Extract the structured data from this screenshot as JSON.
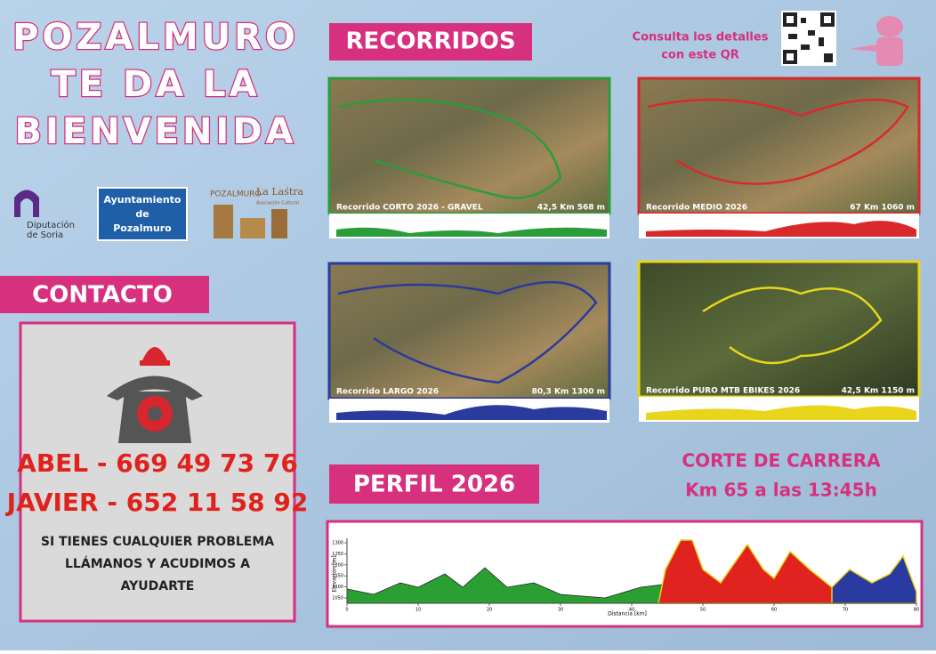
{
  "title_lines": [
    "POZALMURO",
    "TE DA LA",
    "BIENVENIDA"
  ],
  "logos": {
    "diputacion": [
      "Diputación",
      "de Soria"
    ],
    "ayuntamiento": [
      "Ayuntamiento",
      "de",
      "Pozalmuro"
    ],
    "lastra": [
      "POZALMURO",
      "La Laśtra",
      "Asociación Cultural"
    ]
  },
  "contact": {
    "heading": "CONTACTO",
    "phones": [
      "ABEL  -  669 49 73 76",
      "JAVIER  -  652 11 58 92"
    ],
    "note": [
      "SI TIENES CUALQUIER PROBLEMA",
      "LLÁMANOS Y ACUDIMOS A",
      "AYUDARTE"
    ]
  },
  "routes": {
    "heading": "RECORRIDOS",
    "qr_text": [
      "Consulta los detalles",
      "con este QR"
    ],
    "maps": [
      {
        "name": "Recorrido CORTO 2026 - GRAVEL",
        "stats": "42,5 Km 568 m"
      },
      {
        "name": "Recorrido MEDIO 2026",
        "stats": "67 Km 1060 m"
      },
      {
        "name": "Recorrido LARGO 2026",
        "stats": "80,3 Km 1300 m"
      },
      {
        "name": "Recorrido PURO MTB EBIKES 2026",
        "stats": "42,5 Km 1150 m"
      }
    ]
  },
  "profile": {
    "heading": "PERFIL 2026",
    "cutoff": [
      "CORTE DE CARRERA",
      "Km 65 a las 13:45h"
    ],
    "ylabel": "Elevación [m]",
    "xlabel": "Distancia [km]",
    "yticks": [
      1050,
      1100,
      1150,
      1200,
      1250,
      1300
    ],
    "xticks": [
      0,
      10,
      20,
      30,
      40,
      50,
      60,
      70,
      80
    ]
  }
}
